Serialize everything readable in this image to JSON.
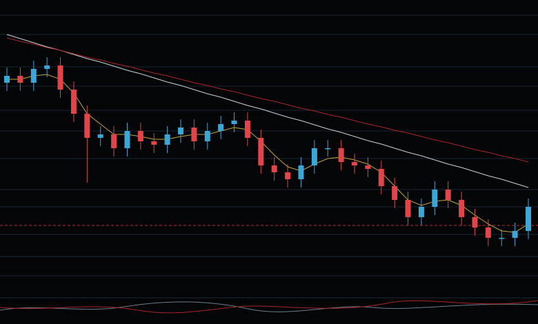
{
  "chart_data": {
    "type": "candlestick",
    "open": [
      350,
      360,
      350,
      370,
      375,
      340,
      305,
      270,
      275,
      255,
      280,
      265,
      260,
      275,
      285,
      265,
      280,
      290,
      295,
      270,
      230,
      220,
      210,
      230,
      255,
      255,
      235,
      230,
      225,
      200,
      180,
      155,
      170,
      195,
      180,
      155,
      140,
      125,
      125,
      135
    ],
    "high": [
      372,
      372,
      382,
      387,
      387,
      352,
      317,
      287,
      287,
      292,
      292,
      277,
      287,
      297,
      297,
      292,
      302,
      307,
      307,
      282,
      242,
      232,
      242,
      267,
      267,
      267,
      247,
      242,
      237,
      212,
      192,
      182,
      207,
      207,
      192,
      167,
      152,
      137,
      147,
      182
    ],
    "low": [
      338,
      338,
      338,
      358,
      328,
      293,
      205,
      258,
      243,
      243,
      253,
      248,
      248,
      263,
      253,
      253,
      268,
      278,
      258,
      218,
      208,
      198,
      198,
      218,
      243,
      223,
      218,
      213,
      188,
      168,
      143,
      143,
      158,
      168,
      143,
      128,
      113,
      113,
      113,
      123
    ],
    "close": [
      360,
      350,
      370,
      375,
      340,
      305,
      270,
      275,
      255,
      280,
      265,
      260,
      275,
      285,
      265,
      280,
      290,
      295,
      270,
      230,
      220,
      210,
      230,
      255,
      255,
      235,
      230,
      225,
      200,
      180,
      155,
      170,
      195,
      180,
      155,
      140,
      125,
      125,
      135,
      170
    ],
    "up_color": "#3aa7d6",
    "down_color": "#e0454a",
    "lines": [
      {
        "color": "#c9d3dc",
        "values": [
          420,
          414,
          408,
          402,
          397,
          391,
          385,
          380,
          374,
          368,
          363,
          357,
          351,
          346,
          340,
          334,
          329,
          323,
          317,
          312,
          306,
          300,
          295,
          289,
          283,
          278,
          272,
          266,
          261,
          255,
          249,
          244,
          238,
          232,
          227,
          221,
          215,
          210,
          204,
          198
        ]
      },
      {
        "color": "#a8262b",
        "values": [
          415,
          410,
          406,
          401,
          397,
          392,
          387,
          383,
          378,
          374,
          369,
          364,
          360,
          355,
          350,
          346,
          341,
          337,
          332,
          327,
          323,
          318,
          313,
          309,
          304,
          300,
          295,
          290,
          286,
          281,
          277,
          272,
          267,
          263,
          258,
          253,
          249,
          244,
          240,
          235
        ]
      },
      {
        "color": "#c9a437",
        "values": [
          355,
          355,
          360,
          362,
          355,
          335,
          305,
          290,
          275,
          275,
          272,
          268,
          268,
          272,
          275,
          275,
          280,
          285,
          282,
          265,
          245,
          228,
          222,
          232,
          240,
          242,
          238,
          232,
          220,
          200,
          180,
          172,
          178,
          180,
          172,
          158,
          145,
          135,
          133,
          145
        ]
      }
    ],
    "reference_line": 143,
    "reference_color": "#c0303a",
    "ylim": [
      0,
      470
    ],
    "yticks": [
      448,
      420,
      373,
      345,
      310,
      280,
      240,
      195,
      170,
      130,
      98,
      70
    ],
    "grid": true
  }
}
